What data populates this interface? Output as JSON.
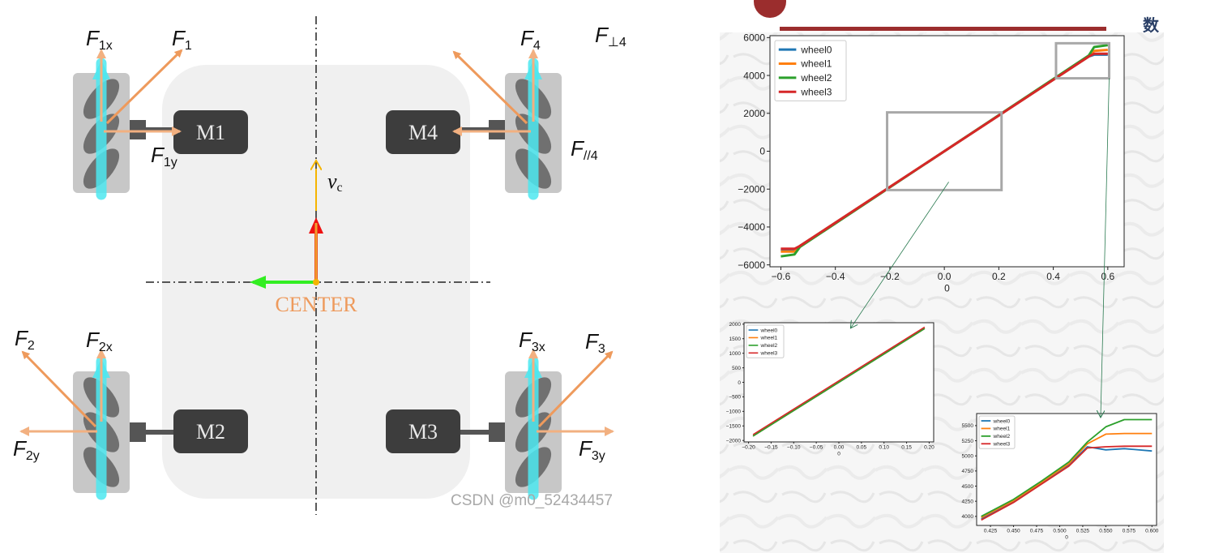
{
  "colors": {
    "force": "#ee9a5c",
    "force_light": "#f2b080",
    "cyan": "#4ce8f0",
    "motor": "#3d3d3d",
    "chassis": "#f0f0f0",
    "green": "#33ee22",
    "red": "#ee1111",
    "yellow": "#f5b400",
    "wheel0": "#1f77b4",
    "wheel1": "#ff7f0e",
    "wheel2": "#2ca02c",
    "wheel3": "#d62728",
    "zoom_box": "#a8a8a8",
    "accent_bar": "#9b2d2d"
  },
  "diagram": {
    "motors": [
      "M1",
      "M4",
      "M2",
      "M3"
    ],
    "center_label": "CENTER",
    "velocity_label": "v",
    "velocity_sub": "c",
    "forces": {
      "f1x": {
        "base": "F",
        "sub": "1x"
      },
      "f1": {
        "base": "F",
        "sub": "1"
      },
      "f1y": {
        "base": "F",
        "sub": "1y"
      },
      "f4": {
        "base": "F",
        "sub": "4"
      },
      "fperp4": {
        "base": "F",
        "sub": "⊥4"
      },
      "fpar4": {
        "base": "F",
        "sub": "//4"
      },
      "f2": {
        "base": "F",
        "sub": "2"
      },
      "f2x": {
        "base": "F",
        "sub": "2x"
      },
      "f2y": {
        "base": "F",
        "sub": "2y"
      },
      "f3x": {
        "base": "F",
        "sub": "3x"
      },
      "f3": {
        "base": "F",
        "sub": "3"
      },
      "f3y": {
        "base": "F",
        "sub": "3y"
      }
    },
    "watermark": "CSDN @m0_52434457"
  },
  "corner_glyph": "数",
  "chart_data": [
    {
      "type": "line",
      "title": "",
      "xlabel": "0",
      "ylabel": "",
      "xlim": [
        -0.64,
        0.66
      ],
      "ylim": [
        -6100,
        6100
      ],
      "xticks": [
        "−0.6",
        "−0.4",
        "−0.2",
        "0.0",
        "0.2",
        "0.4",
        "0.6"
      ],
      "yticks": [
        "−6000",
        "−4000",
        "−2000",
        "0",
        "2000",
        "4000",
        "6000"
      ],
      "legend": "top-left",
      "series": [
        {
          "name": "wheel0",
          "x": [
            -0.6,
            -0.55,
            -0.53,
            0.53,
            0.55,
            0.6
          ],
          "y": [
            -5200,
            -5200,
            -5000,
            5000,
            5100,
            5100
          ]
        },
        {
          "name": "wheel1",
          "x": [
            -0.6,
            -0.55,
            -0.53,
            0.53,
            0.55,
            0.6
          ],
          "y": [
            -5300,
            -5300,
            -5000,
            5000,
            5300,
            5350
          ]
        },
        {
          "name": "wheel2",
          "x": [
            -0.6,
            -0.55,
            -0.53,
            0.53,
            0.55,
            0.6
          ],
          "y": [
            -5550,
            -5450,
            -5050,
            5050,
            5500,
            5600
          ]
        },
        {
          "name": "wheel3",
          "x": [
            -0.6,
            -0.55,
            -0.53,
            0.53,
            0.55,
            0.6
          ],
          "y": [
            -5150,
            -5150,
            -5000,
            5000,
            5150,
            5150
          ]
        }
      ]
    },
    {
      "type": "line",
      "title": "",
      "xlabel": "0",
      "ylabel": "",
      "xlim": [
        -0.21,
        0.21
      ],
      "ylim": [
        -2050,
        2050
      ],
      "xticks": [
        "−0.20",
        "−0.15",
        "−0.10",
        "−0.05",
        "0.00",
        "0.05",
        "0.10",
        "0.15",
        "0.20"
      ],
      "yticks": [
        "−2000",
        "−1500",
        "−1000",
        "−500",
        "0",
        "500",
        "1000",
        "1500",
        "2000"
      ],
      "legend": "top-left",
      "series": [
        {
          "name": "wheel0",
          "x": [
            -0.19,
            0.19
          ],
          "y": [
            -1850,
            1850
          ]
        },
        {
          "name": "wheel1",
          "x": [
            -0.19,
            0.19
          ],
          "y": [
            -1850,
            1850
          ]
        },
        {
          "name": "wheel2",
          "x": [
            -0.19,
            0.19
          ],
          "y": [
            -1850,
            1850
          ]
        },
        {
          "name": "wheel3",
          "x": [
            -0.19,
            0.19
          ],
          "y": [
            -1800,
            1900
          ]
        }
      ]
    },
    {
      "type": "line",
      "title": "",
      "xlabel": "0",
      "ylabel": "",
      "xlim": [
        0.41,
        0.605
      ],
      "ylim": [
        3850,
        5700
      ],
      "xticks": [
        "0.425",
        "0.450",
        "0.475",
        "0.500",
        "0.525",
        "0.550",
        "0.575",
        "0.600"
      ],
      "yticks": [
        "4000",
        "4250",
        "4500",
        "4750",
        "5000",
        "5250",
        "5500"
      ],
      "legend": "top-left",
      "series": [
        {
          "name": "wheel0",
          "x": [
            0.415,
            0.45,
            0.48,
            0.51,
            0.53,
            0.55,
            0.57,
            0.6
          ],
          "y": [
            3960,
            4250,
            4550,
            4850,
            5150,
            5100,
            5120,
            5080
          ]
        },
        {
          "name": "wheel1",
          "x": [
            0.415,
            0.45,
            0.48,
            0.51,
            0.53,
            0.55,
            0.57,
            0.6
          ],
          "y": [
            3980,
            4260,
            4560,
            4870,
            5200,
            5360,
            5370,
            5370
          ]
        },
        {
          "name": "wheel2",
          "x": [
            0.415,
            0.45,
            0.48,
            0.51,
            0.53,
            0.55,
            0.57,
            0.6
          ],
          "y": [
            4000,
            4280,
            4580,
            4900,
            5230,
            5480,
            5600,
            5600
          ]
        },
        {
          "name": "wheel3",
          "x": [
            0.415,
            0.45,
            0.48,
            0.51,
            0.53,
            0.55,
            0.57,
            0.6
          ],
          "y": [
            3940,
            4230,
            4530,
            4830,
            5130,
            5150,
            5160,
            5160
          ]
        }
      ]
    }
  ]
}
